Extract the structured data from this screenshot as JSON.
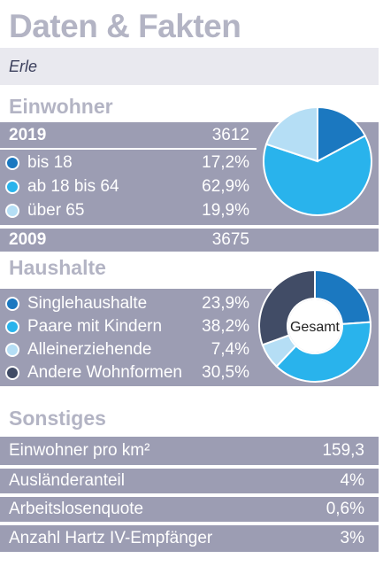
{
  "header": {
    "title": "Daten & Fakten",
    "subtitle": "Erle"
  },
  "colors": {
    "dark_blue": "#1b78c0",
    "cyan": "#29b3ec",
    "light_blue": "#b5def5",
    "navy": "#414c66",
    "panel_gray": "#9c9db3",
    "title_gray": "#b3b4c4"
  },
  "einwohner": {
    "heading": "Einwohner",
    "year_a": {
      "label": "2019",
      "value": "3612"
    },
    "rows": [
      {
        "label": "bis 18",
        "value": "17,2%",
        "color": "#1b78c0"
      },
      {
        "label": "ab 18 bis 64",
        "value": "62,9%",
        "color": "#29b3ec"
      },
      {
        "label": "über 65",
        "value": "19,9%",
        "color": "#b5def5"
      }
    ],
    "year_b": {
      "label": "2009",
      "value": "3675"
    }
  },
  "haushalte": {
    "heading": "Haushalte",
    "rows": [
      {
        "label": "Singlehaushalte",
        "value": "23,9%",
        "color": "#1b78c0"
      },
      {
        "label": "Paare mit Kindern",
        "value": "38,2%",
        "color": "#29b3ec"
      },
      {
        "label": "Alleinerziehende",
        "value": "7,4%",
        "color": "#b5def5"
      },
      {
        "label": "Andere Wohnformen",
        "value": "30,5%",
        "color": "#414c66"
      }
    ],
    "donut_center": "Gesamt"
  },
  "sonstiges": {
    "heading": "Sonstiges",
    "rows": [
      {
        "label": "Einwohner pro km²",
        "value": "159,3"
      },
      {
        "label": "Ausländeranteil",
        "value": "4%"
      },
      {
        "label": "Arbeitslosenquote",
        "value": "0,6%"
      },
      {
        "label": "Anzahl Hartz IV-Empfänger",
        "value": "3%"
      }
    ]
  },
  "chart_data": [
    {
      "type": "pie",
      "categories": [
        "bis 18",
        "ab 18 bis 64",
        "über 65"
      ],
      "values": [
        17.2,
        62.9,
        19.9
      ],
      "colors": [
        "#1b78c0",
        "#29b3ec",
        "#b5def5"
      ]
    },
    {
      "type": "pie",
      "style": "donut",
      "center_label": "Gesamt",
      "categories": [
        "Singlehaushalte",
        "Paare mit Kindern",
        "Alleinerziehende",
        "Andere Wohnformen"
      ],
      "values": [
        23.9,
        38.2,
        7.4,
        30.5
      ],
      "colors": [
        "#1b78c0",
        "#29b3ec",
        "#b5def5",
        "#414c66"
      ]
    }
  ]
}
